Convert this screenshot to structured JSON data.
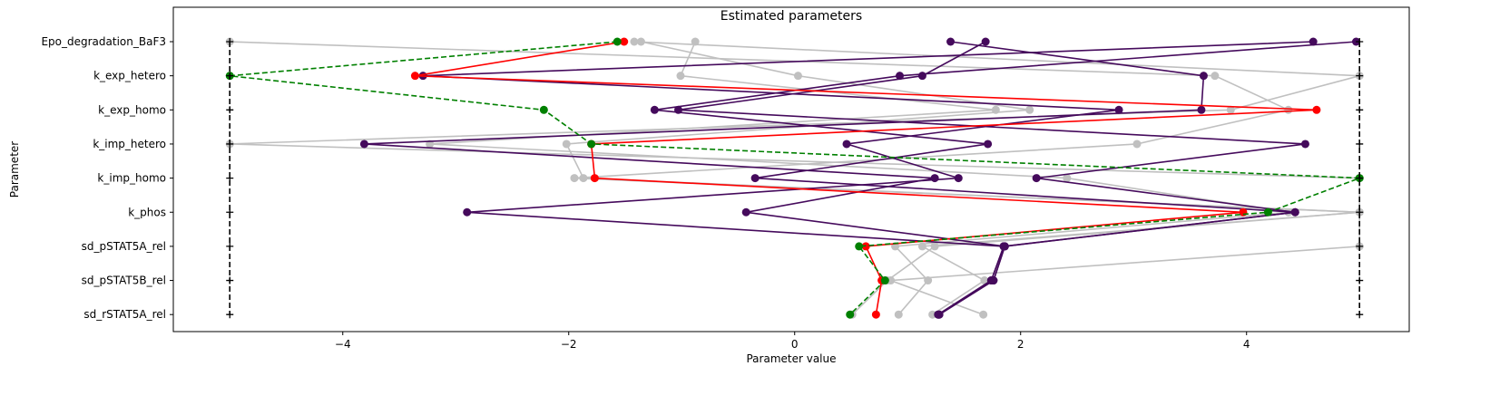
{
  "chart_data": {
    "type": "parameter-lines",
    "title": "Estimated parameters",
    "x_label": "Parameter value",
    "y_label": "Parameter",
    "categories": [
      "Epo_degradation_BaF3",
      "k_exp_hetero",
      "k_exp_homo",
      "k_imp_hetero",
      "k_imp_homo",
      "k_phos",
      "sd_pSTAT5A_rel",
      "sd_pSTAT5B_rel",
      "sd_rSTAT5A_rel"
    ],
    "xlim": [
      -5.5,
      5.44
    ],
    "xticks": [
      {
        "value": -4,
        "label": "−4"
      },
      {
        "value": -2,
        "label": "−2"
      },
      0,
      2,
      4
    ],
    "series": [
      {
        "color": "#c0c0c0",
        "linestyle": "-",
        "marker": "o",
        "values": [
          -5,
          3.72,
          4.37,
          3.03,
          -1.95,
          5,
          5,
          0.85,
          1.67
        ]
      },
      {
        "color": "#c0c0c0",
        "linestyle": "-",
        "marker": "o",
        "values": [
          -0.88,
          -1.01,
          1.78,
          -3.23,
          2.41,
          4.37,
          0.89,
          1.18,
          0.92
        ]
      },
      {
        "color": "#c0c0c0",
        "linestyle": "-",
        "marker": "o",
        "values": [
          -1.36,
          0.03,
          2.08,
          -2.02,
          -1.87,
          5,
          1.13,
          1.68,
          1.22
        ]
      },
      {
        "color": "#c0c0c0",
        "linestyle": "-",
        "marker": "o",
        "values": [
          -1.42,
          5,
          3.86,
          -5,
          5,
          5,
          1.24,
          0.82,
          0.51
        ]
      },
      {
        "color": "#450a5c",
        "linestyle": "-",
        "marker": "o",
        "values": [
          4.97,
          0.93,
          -1.24,
          1.71,
          -0.35,
          4.43,
          1.86,
          1.76,
          1.28
        ]
      },
      {
        "color": "#450a5c",
        "linestyle": "-",
        "marker": "o",
        "values": [
          4.59,
          -3.29,
          2.87,
          0.46,
          1.45,
          -2.9,
          1.85,
          1.74,
          1.27
        ]
      },
      {
        "color": "#450a5c",
        "linestyle": "-",
        "marker": "o",
        "values": [
          1.38,
          3.62,
          3.6,
          -3.81,
          1.24,
          -0.43,
          1.86,
          1.76,
          1.28
        ]
      },
      {
        "color": "#450a5c",
        "linestyle": "-",
        "marker": "o",
        "values": [
          1.69,
          1.13,
          -1.03,
          4.52,
          2.14,
          4.43,
          1.85,
          1.74,
          1.27
        ]
      },
      {
        "color": "#ff0000",
        "linestyle": "-",
        "marker": "o",
        "values": [
          -1.51,
          -3.36,
          4.62,
          -1.8,
          -1.77,
          3.97,
          0.63,
          0.77,
          0.72
        ]
      },
      {
        "color": "#008000",
        "linestyle": "--",
        "marker": "o",
        "values": [
          -1.57,
          -5,
          -2.22,
          -1.8,
          5,
          4.19,
          0.57,
          0.8,
          0.49
        ]
      },
      {
        "color": "#000000",
        "linestyle": "--",
        "marker": "+",
        "values": [
          -5,
          -5,
          -5,
          -5,
          -5,
          -5,
          -5,
          -5,
          -5
        ]
      },
      {
        "color": "#000000",
        "linestyle": "--",
        "marker": "+",
        "values": [
          5,
          5,
          5,
          5,
          5,
          5,
          5,
          5,
          5
        ]
      }
    ]
  }
}
